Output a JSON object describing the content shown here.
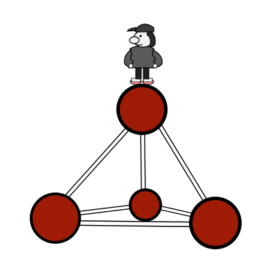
{
  "game": {
    "scene": "graph-puzzle",
    "node_color": "#9e1c06",
    "node_outline": "#000000",
    "edge_color": "#000000",
    "edge_fill": "#ffffff",
    "nodes": [
      {
        "id": "top",
        "role": "occupied"
      },
      {
        "id": "bottom-left",
        "role": "empty"
      },
      {
        "id": "bottom-right",
        "role": "empty"
      },
      {
        "id": "center",
        "role": "empty"
      }
    ],
    "edges": [
      [
        "top",
        "bottom-left"
      ],
      [
        "top",
        "bottom-right"
      ],
      [
        "top",
        "center"
      ],
      [
        "bottom-left",
        "center"
      ],
      [
        "center",
        "bottom-right"
      ],
      [
        "bottom-left",
        "bottom-right"
      ]
    ],
    "character": {
      "icon": "boy-with-cap-icon",
      "on_node": "top",
      "cap_color": "#3a3a3a",
      "shirt_color": "#5a5a5a",
      "skin_color": "#f2f2f2",
      "pants_color": "#222222",
      "shoe_color": "#ff9a9a"
    }
  }
}
